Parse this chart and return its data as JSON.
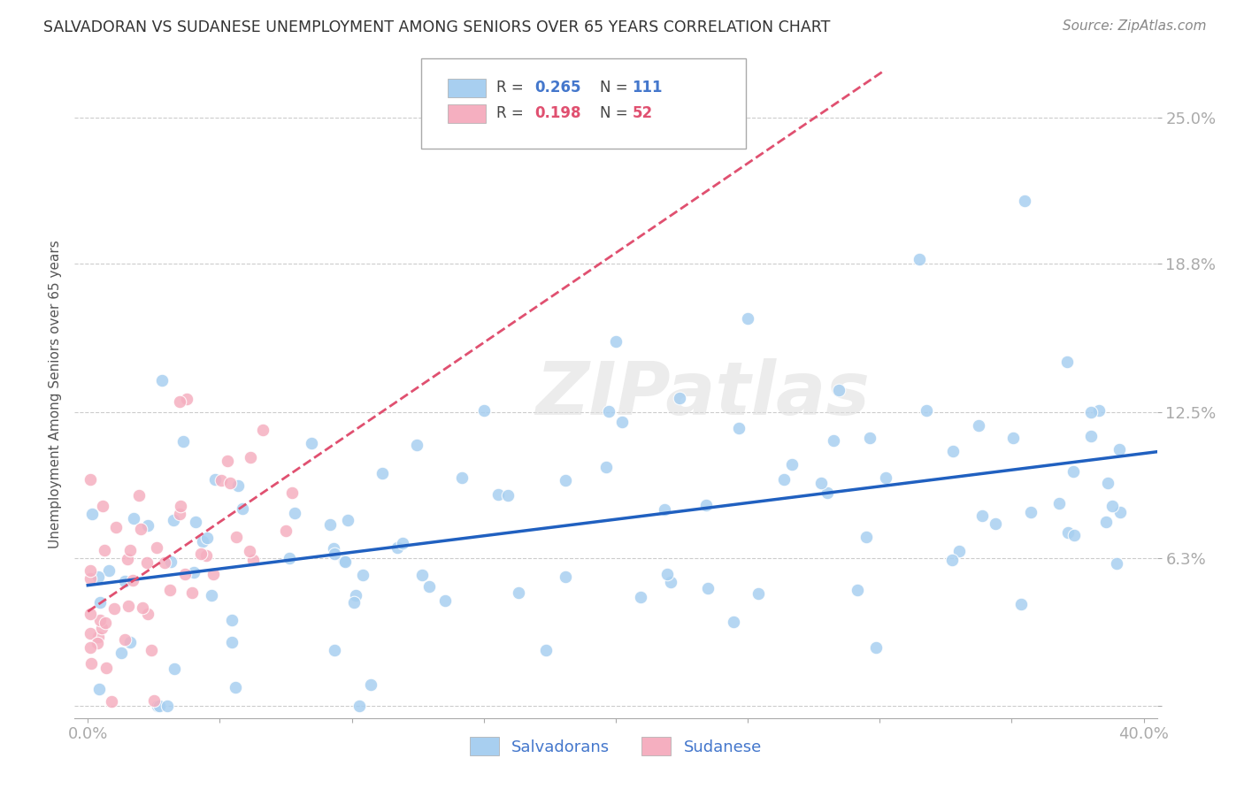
{
  "title": "SALVADORAN VS SUDANESE UNEMPLOYMENT AMONG SENIORS OVER 65 YEARS CORRELATION CHART",
  "source": "Source: ZipAtlas.com",
  "ylabel": "Unemployment Among Seniors over 65 years",
  "xlim": [
    -0.005,
    0.405
  ],
  "ylim": [
    -0.005,
    0.27
  ],
  "ytick_positions": [
    0.0,
    0.063,
    0.125,
    0.188,
    0.25
  ],
  "ytick_labels": [
    "",
    "6.3%",
    "12.5%",
    "18.8%",
    "25.0%"
  ],
  "xtick_positions": [
    0.0,
    0.05,
    0.1,
    0.15,
    0.2,
    0.25,
    0.3,
    0.35,
    0.4
  ],
  "xtick_labels": [
    "0.0%",
    "",
    "",
    "",
    "",
    "",
    "",
    "",
    "40.0%"
  ],
  "legend_salv_r": "R = 0.265",
  "legend_salv_n": "N = 111",
  "legend_sud_r": "R = 0.198",
  "legend_sud_n": "N = 52",
  "salvadoran_color": "#a8cff0",
  "sudanese_color": "#f5afc0",
  "trend_salvadoran_color": "#2060c0",
  "trend_sudanese_color": "#e05070",
  "watermark": "ZIPatlas",
  "title_color": "#333333",
  "axis_label_color": "#4477cc",
  "background_color": "#ffffff",
  "grid_color": "#cccccc",
  "salvadoran_R": 0.265,
  "sudanese_R": 0.198,
  "salvadoran_N": 111,
  "sudanese_N": 52
}
